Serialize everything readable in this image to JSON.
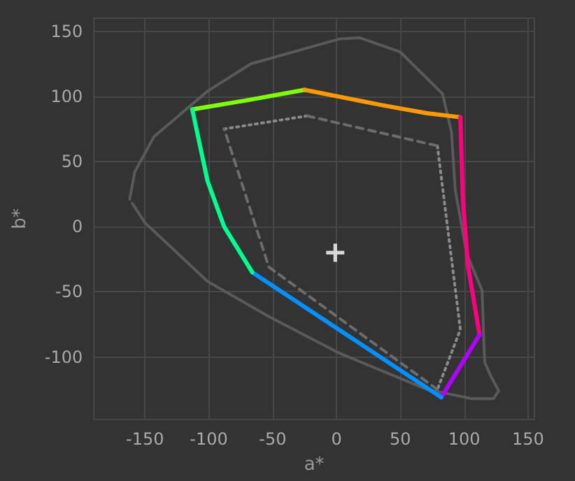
{
  "chart_data": {
    "type": "line",
    "xlabel": "a*",
    "ylabel": "b*",
    "xlim": [
      -190,
      155
    ],
    "ylim": [
      -148,
      160
    ],
    "xticks": [
      -150,
      -100,
      -50,
      0,
      50,
      100,
      150
    ],
    "yticks": [
      -100,
      -50,
      0,
      50,
      100,
      150
    ],
    "grid": true,
    "marker": "none",
    "series": [
      {
        "color": "#5a5a5a",
        "line_style": "solid",
        "x": [
          -162,
          -158,
          -143,
          -101,
          -67,
          2,
          18,
          50,
          83,
          90,
          93,
          102,
          114,
          116,
          121,
          127,
          123,
          106,
          71,
          2,
          -53,
          -101,
          -150,
          -160
        ],
        "values": [
          21,
          42,
          69,
          104,
          125,
          144,
          145,
          134,
          102,
          73,
          28,
          -21,
          -49,
          -104,
          -115,
          -126,
          -132,
          -132,
          -125,
          -97,
          -69,
          -42,
          3,
          18
        ]
      },
      {
        "color": "#8a8a8a",
        "line_style": "dotted",
        "x": [
          -88,
          -23,
          30,
          79,
          97,
          79
        ],
        "values": [
          75,
          85,
          null,
          62,
          -79,
          -125
        ]
      },
      {
        "color": "#6c6c6c",
        "line_style": "dashed",
        "x": [
          79,
          -53,
          -88,
          -50,
          -23,
          79
        ],
        "values": [
          -125,
          -31,
          75,
          null,
          85,
          62
        ]
      },
      {
        "color": "#80ff00",
        "line_style": "solid",
        "x": [
          -113,
          -70,
          -25
        ],
        "values": [
          90,
          97,
          105
        ]
      },
      {
        "color": "#ff9900",
        "line_style": "solid",
        "x": [
          -25,
          37,
          71,
          97
        ],
        "values": [
          105,
          93,
          87,
          84
        ]
      },
      {
        "color": "#ff0080",
        "line_style": "solid",
        "x": [
          97,
          99,
          103,
          112
        ],
        "values": [
          84,
          20,
          -30,
          -83
        ]
      },
      {
        "color": "#b000ff",
        "line_style": "solid",
        "x": [
          112,
          82
        ],
        "values": [
          -83,
          -131
        ]
      },
      {
        "color": "#0090ff",
        "line_style": "solid",
        "x": [
          82,
          -66
        ],
        "values": [
          -131,
          -35
        ]
      },
      {
        "color": "#00ff90",
        "line_style": "solid",
        "x": [
          -66,
          -88,
          -101,
          -113
        ],
        "values": [
          -35,
          0,
          35,
          90
        ]
      },
      {
        "type": "scatter",
        "marker": "cross",
        "color": "#ffffff",
        "x": [
          -1
        ],
        "values": [
          -20
        ]
      }
    ]
  }
}
